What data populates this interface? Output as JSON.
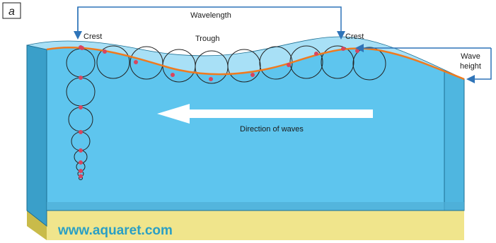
{
  "panel_letter": "a",
  "labels": {
    "wavelength": "Wavelength",
    "crest_left": "Crest",
    "crest_right": "Crest",
    "trough": "Trough",
    "wave_height_line1": "Wave",
    "wave_height_line2": "height",
    "direction": "Direction of waves"
  },
  "watermark": "www.aquaret.com",
  "colors": {
    "water": "#5ec5ee",
    "water_light": "#9fdcf5",
    "water_dark": "#3a9fc9",
    "sand": "#f0e58c",
    "sand_dark": "#c9bb4a",
    "surface_line": "#f07a1e",
    "particle": "#d9455e",
    "annotation": "#2f74b8",
    "watermark": "#2a9fc4",
    "arrow": "#ffffff"
  }
}
